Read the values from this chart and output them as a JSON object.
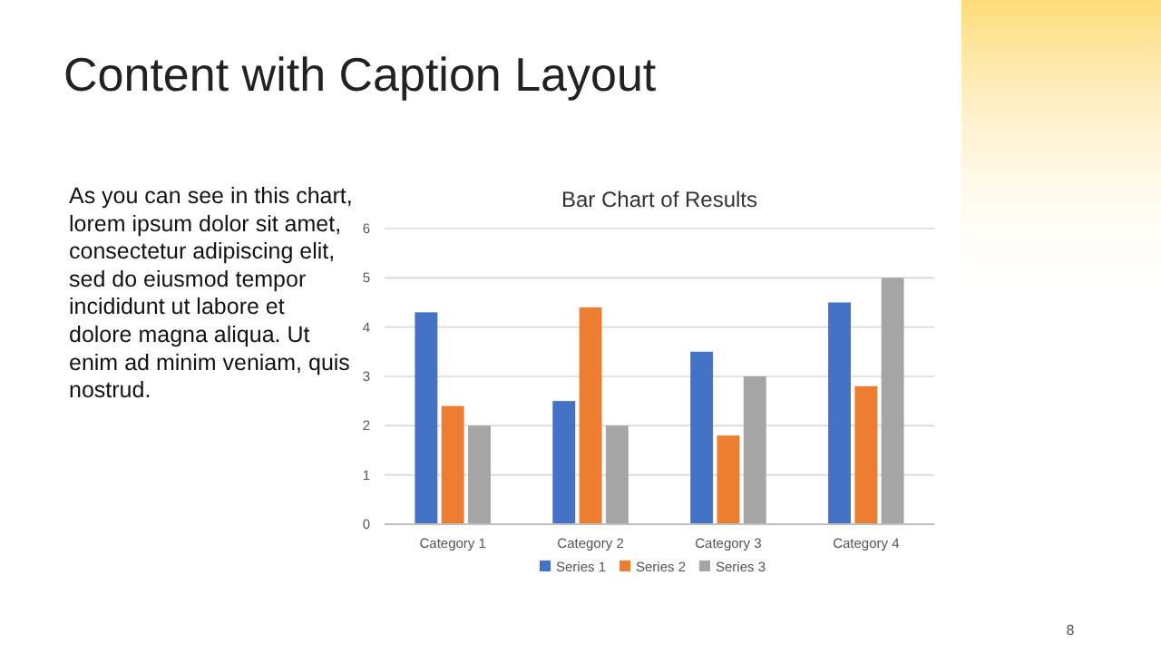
{
  "chart_data": {
    "type": "bar",
    "title": "Bar Chart of Results",
    "annotations": [
      "Content with Caption Layout",
      "As you can see in this chart,\nlorem ipsum dolor sit amet,\nconsectetur adipiscing elit,\nsed do eiusmod tempor\nincididunt ut labore et\ndolore magna aliqua. Ut\nenim ad minim veniam, quis\nnostrud.",
      "8"
    ],
    "categories": [
      "Category 1",
      "Category 2",
      "Category 3",
      "Category 4"
    ],
    "series": [
      {
        "name": "Series 1",
        "color": "#4472c4",
        "values": [
          4.3,
          2.5,
          3.5,
          4.5
        ]
      },
      {
        "name": "Series 2",
        "color": "#ed7d31",
        "values": [
          2.4,
          4.4,
          1.8,
          2.8
        ]
      },
      {
        "name": "Series 3",
        "color": "#a5a5a5",
        "values": [
          2,
          2,
          3,
          5
        ]
      }
    ],
    "ylim": [
      0,
      6
    ],
    "yticks": [
      0,
      1,
      2,
      3,
      4,
      5,
      6
    ],
    "grid": "y",
    "legend": "bottom"
  }
}
